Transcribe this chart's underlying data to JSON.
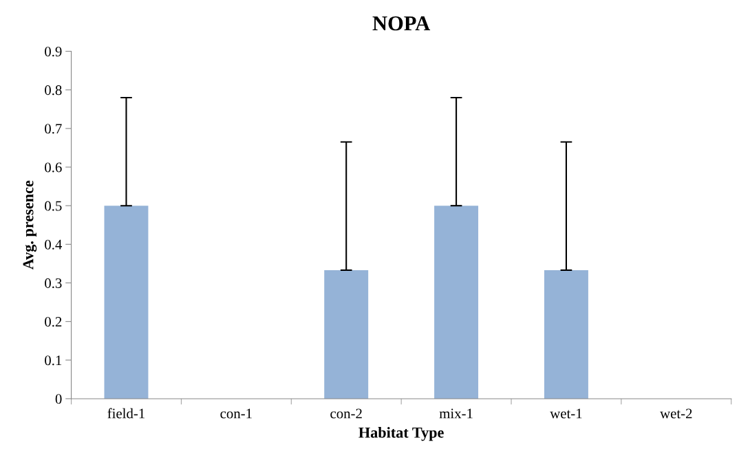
{
  "chart_data": {
    "type": "bar",
    "title": "NOPA",
    "xlabel": "Habitat Type",
    "ylabel": "Avg. presence",
    "categories": [
      "field-1",
      "con-1",
      "con-2",
      "mix-1",
      "wet-1",
      "wet-2"
    ],
    "values": [
      0.5,
      0,
      0.333,
      0.5,
      0.333,
      0
    ],
    "errors": [
      [
        0.5,
        0.78
      ],
      null,
      [
        0.333,
        0.665
      ],
      [
        0.5,
        0.78
      ],
      [
        0.333,
        0.665
      ],
      null
    ],
    "color": "#95b3d7",
    "ylim": [
      0,
      0.9
    ],
    "yticks": [
      0,
      0.1,
      0.2,
      0.3,
      0.4,
      0.5,
      0.6,
      0.7,
      0.8,
      0.9
    ],
    "grid": false
  }
}
